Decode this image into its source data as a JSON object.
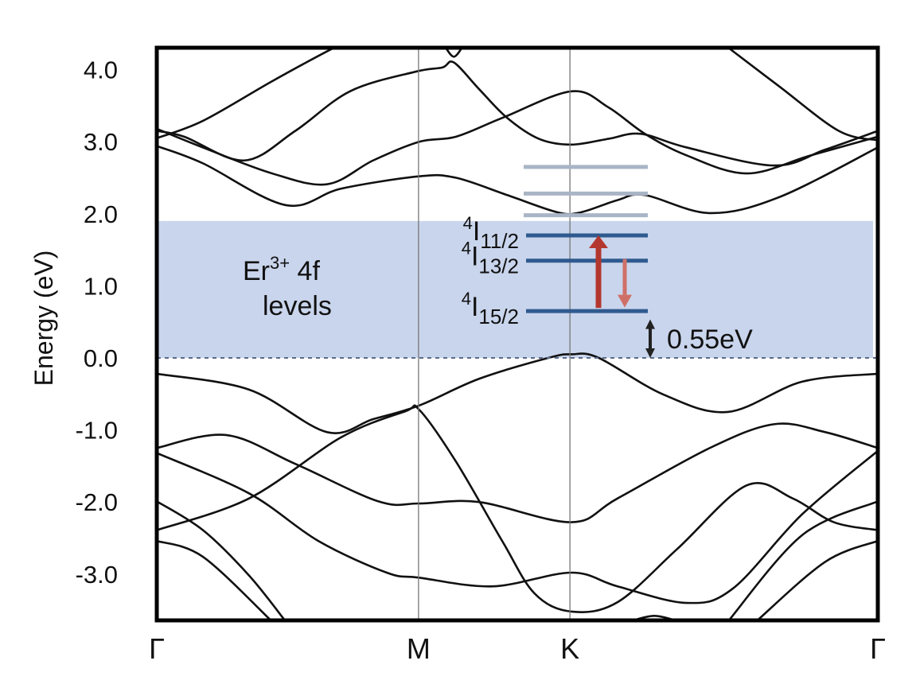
{
  "chart_data": {
    "type": "line",
    "title": "",
    "xlabel": "",
    "ylabel": "Energy (eV)",
    "ylim": [
      -3.65,
      4.31
    ],
    "yticks": [
      "4.0",
      "3.0",
      "2.0",
      "1.0",
      "0.0",
      "-1.0",
      "-2.0",
      "-3.0"
    ],
    "ytick_values": [
      4,
      3,
      2,
      1,
      0,
      -1,
      -2,
      -3
    ],
    "kpoints": [
      {
        "label": "Γ",
        "k": 0
      },
      {
        "label": "M",
        "k": 0.363
      },
      {
        "label": "K",
        "k": 0.573
      },
      {
        "label": "Γ",
        "k": 1
      }
    ],
    "fermi_level": 0,
    "shaded_region": {
      "label_main": "Er",
      "label_sup": "3+",
      "label_tail": " 4f",
      "label_line2": "levels",
      "ymin": 0,
      "ymax": 1.9,
      "color": "#c9d5ec"
    },
    "levels": [
      {
        "energy": 2.65,
        "color": "#a9b5c6"
      },
      {
        "energy": 2.28,
        "color": "#a9b5c6"
      },
      {
        "energy": 1.98,
        "color": "#a9b5c6"
      },
      {
        "energy": 1.7,
        "color": "#2f5a8f",
        "sup": "4",
        "main": "I",
        "sub": "11/2"
      },
      {
        "energy": 1.35,
        "color": "#2f5a8f",
        "sup": "4",
        "main": "I",
        "sub": "13/2"
      },
      {
        "energy": 0.65,
        "color": "#2f5a8f",
        "sup": "4",
        "main": "I",
        "sub": "15/2"
      }
    ],
    "transitions": [
      {
        "from": 0.65,
        "to": 1.7,
        "color": "#b3372e",
        "name": "excitation"
      },
      {
        "from": 1.35,
        "to": 0.7,
        "color": "#cf7068",
        "name": "emission"
      }
    ],
    "gap_annotation": {
      "text": "0.55eV",
      "from": 0,
      "to": 0.6
    },
    "bands": [
      [
        [
          0,
          2.94
        ],
        [
          0.064,
          2.7
        ],
        [
          0.179,
          2.12
        ],
        [
          0.256,
          2.35
        ],
        [
          0.364,
          2.52
        ],
        [
          0.415,
          2.5
        ],
        [
          0.486,
          2.26
        ],
        [
          0.556,
          2.02
        ],
        [
          0.588,
          2.02
        ],
        [
          0.639,
          2.19
        ],
        [
          0.677,
          2.26
        ],
        [
          0.767,
          2.01
        ],
        [
          0.863,
          2.23
        ],
        [
          1,
          2.92
        ]
      ],
      [
        [
          0,
          3.18
        ],
        [
          0.064,
          2.92
        ],
        [
          0.16,
          2.56
        ],
        [
          0.236,
          2.41
        ],
        [
          0.3,
          2.74
        ],
        [
          0.364,
          3.0
        ],
        [
          0.415,
          3.07
        ],
        [
          0.479,
          3.33
        ],
        [
          0.575,
          3.7
        ],
        [
          0.626,
          3.48
        ],
        [
          0.677,
          3.11
        ],
        [
          0.735,
          2.81
        ],
        [
          0.818,
          2.56
        ],
        [
          0.907,
          2.81
        ],
        [
          1,
          3.07
        ]
      ],
      [
        [
          0,
          3.15
        ],
        [
          0.038,
          3.07
        ],
        [
          0.121,
          2.74
        ],
        [
          0.192,
          3.15
        ],
        [
          0.268,
          3.7
        ],
        [
          0.358,
          3.97
        ],
        [
          0.396,
          4.03
        ],
        [
          0.412,
          4.1
        ],
        [
          0.447,
          3.73
        ],
        [
          0.486,
          3.33
        ],
        [
          0.53,
          3.04
        ],
        [
          0.575,
          2.96
        ],
        [
          0.626,
          3.04
        ],
        [
          0.671,
          3.11
        ],
        [
          0.735,
          2.92
        ],
        [
          0.856,
          2.67
        ],
        [
          0.927,
          2.89
        ],
        [
          1,
          3.15
        ]
      ],
      [
        [
          0,
          3.05
        ],
        [
          0.064,
          3.29
        ],
        [
          0.16,
          3.84
        ],
        [
          0.243,
          4.29
        ],
        [
          0.268,
          4.4
        ]
      ],
      [
        [
          0.792,
          4.31
        ],
        [
          0.863,
          3.77
        ],
        [
          0.946,
          3.15
        ],
        [
          1,
          3.02
        ]
      ],
      [
        [
          0.398,
          4.35
        ],
        [
          0.412,
          4.18
        ],
        [
          0.426,
          4.35
        ]
      ],
      [
        [
          0,
          -0.22
        ],
        [
          0.128,
          -0.44
        ],
        [
          0.236,
          -1.03
        ],
        [
          0.3,
          -0.85
        ],
        [
          0.364,
          -0.66
        ],
        [
          0.447,
          -0.29
        ],
        [
          0.543,
          0.0
        ],
        [
          0.575,
          0.05
        ],
        [
          0.613,
          0.0
        ],
        [
          0.703,
          -0.51
        ],
        [
          0.792,
          -0.75
        ],
        [
          0.895,
          -0.33
        ],
        [
          1,
          -0.22
        ]
      ],
      [
        [
          0,
          -1.25
        ],
        [
          0.096,
          -1.07
        ],
        [
          0.192,
          -1.47
        ],
        [
          0.307,
          -1.99
        ],
        [
          0.364,
          -2.02
        ],
        [
          0.447,
          -2.0
        ],
        [
          0.575,
          -2.28
        ],
        [
          0.639,
          -1.95
        ],
        [
          0.767,
          -1.25
        ],
        [
          0.856,
          -0.92
        ],
        [
          0.927,
          -1.03
        ],
        [
          1,
          -1.25
        ]
      ],
      [
        [
          0,
          -1.32
        ],
        [
          0.128,
          -1.88
        ],
        [
          0.224,
          -2.54
        ],
        [
          0.319,
          -2.98
        ],
        [
          0.364,
          -3.05
        ],
        [
          0.466,
          -3.17
        ],
        [
          0.575,
          -2.98
        ],
        [
          0.639,
          -3.17
        ],
        [
          0.735,
          -3.4
        ],
        [
          0.799,
          -3.2
        ],
        [
          0.895,
          -2.17
        ],
        [
          1,
          -1.29
        ]
      ],
      [
        [
          0,
          -2.39
        ],
        [
          0.128,
          -1.95
        ],
        [
          0.256,
          -1.1
        ],
        [
          0.345,
          -0.74
        ],
        [
          0.364,
          -0.72
        ],
        [
          0.415,
          -1.44
        ],
        [
          0.479,
          -2.54
        ],
        [
          0.524,
          -3.27
        ],
        [
          0.575,
          -3.52
        ],
        [
          0.639,
          -3.39
        ],
        [
          0.722,
          -2.65
        ],
        [
          0.818,
          -1.77
        ],
        [
          0.882,
          -1.95
        ],
        [
          0.939,
          -2.28
        ],
        [
          1,
          -2.39
        ]
      ],
      [
        [
          0,
          -1.99
        ],
        [
          0.064,
          -2.39
        ],
        [
          0.128,
          -3.02
        ],
        [
          0.179,
          -3.66
        ]
      ],
      [
        [
          0,
          -2.54
        ],
        [
          0.064,
          -2.76
        ],
        [
          0.16,
          -3.66
        ]
      ],
      [
        [
          0.792,
          -3.66
        ],
        [
          0.895,
          -2.46
        ],
        [
          1,
          -1.99
        ]
      ],
      [
        [
          0.831,
          -3.66
        ],
        [
          0.927,
          -2.83
        ],
        [
          1,
          -2.54
        ]
      ],
      [
        [
          0.655,
          -3.66
        ],
        [
          0.69,
          -3.58
        ],
        [
          0.725,
          -3.66
        ]
      ]
    ]
  }
}
